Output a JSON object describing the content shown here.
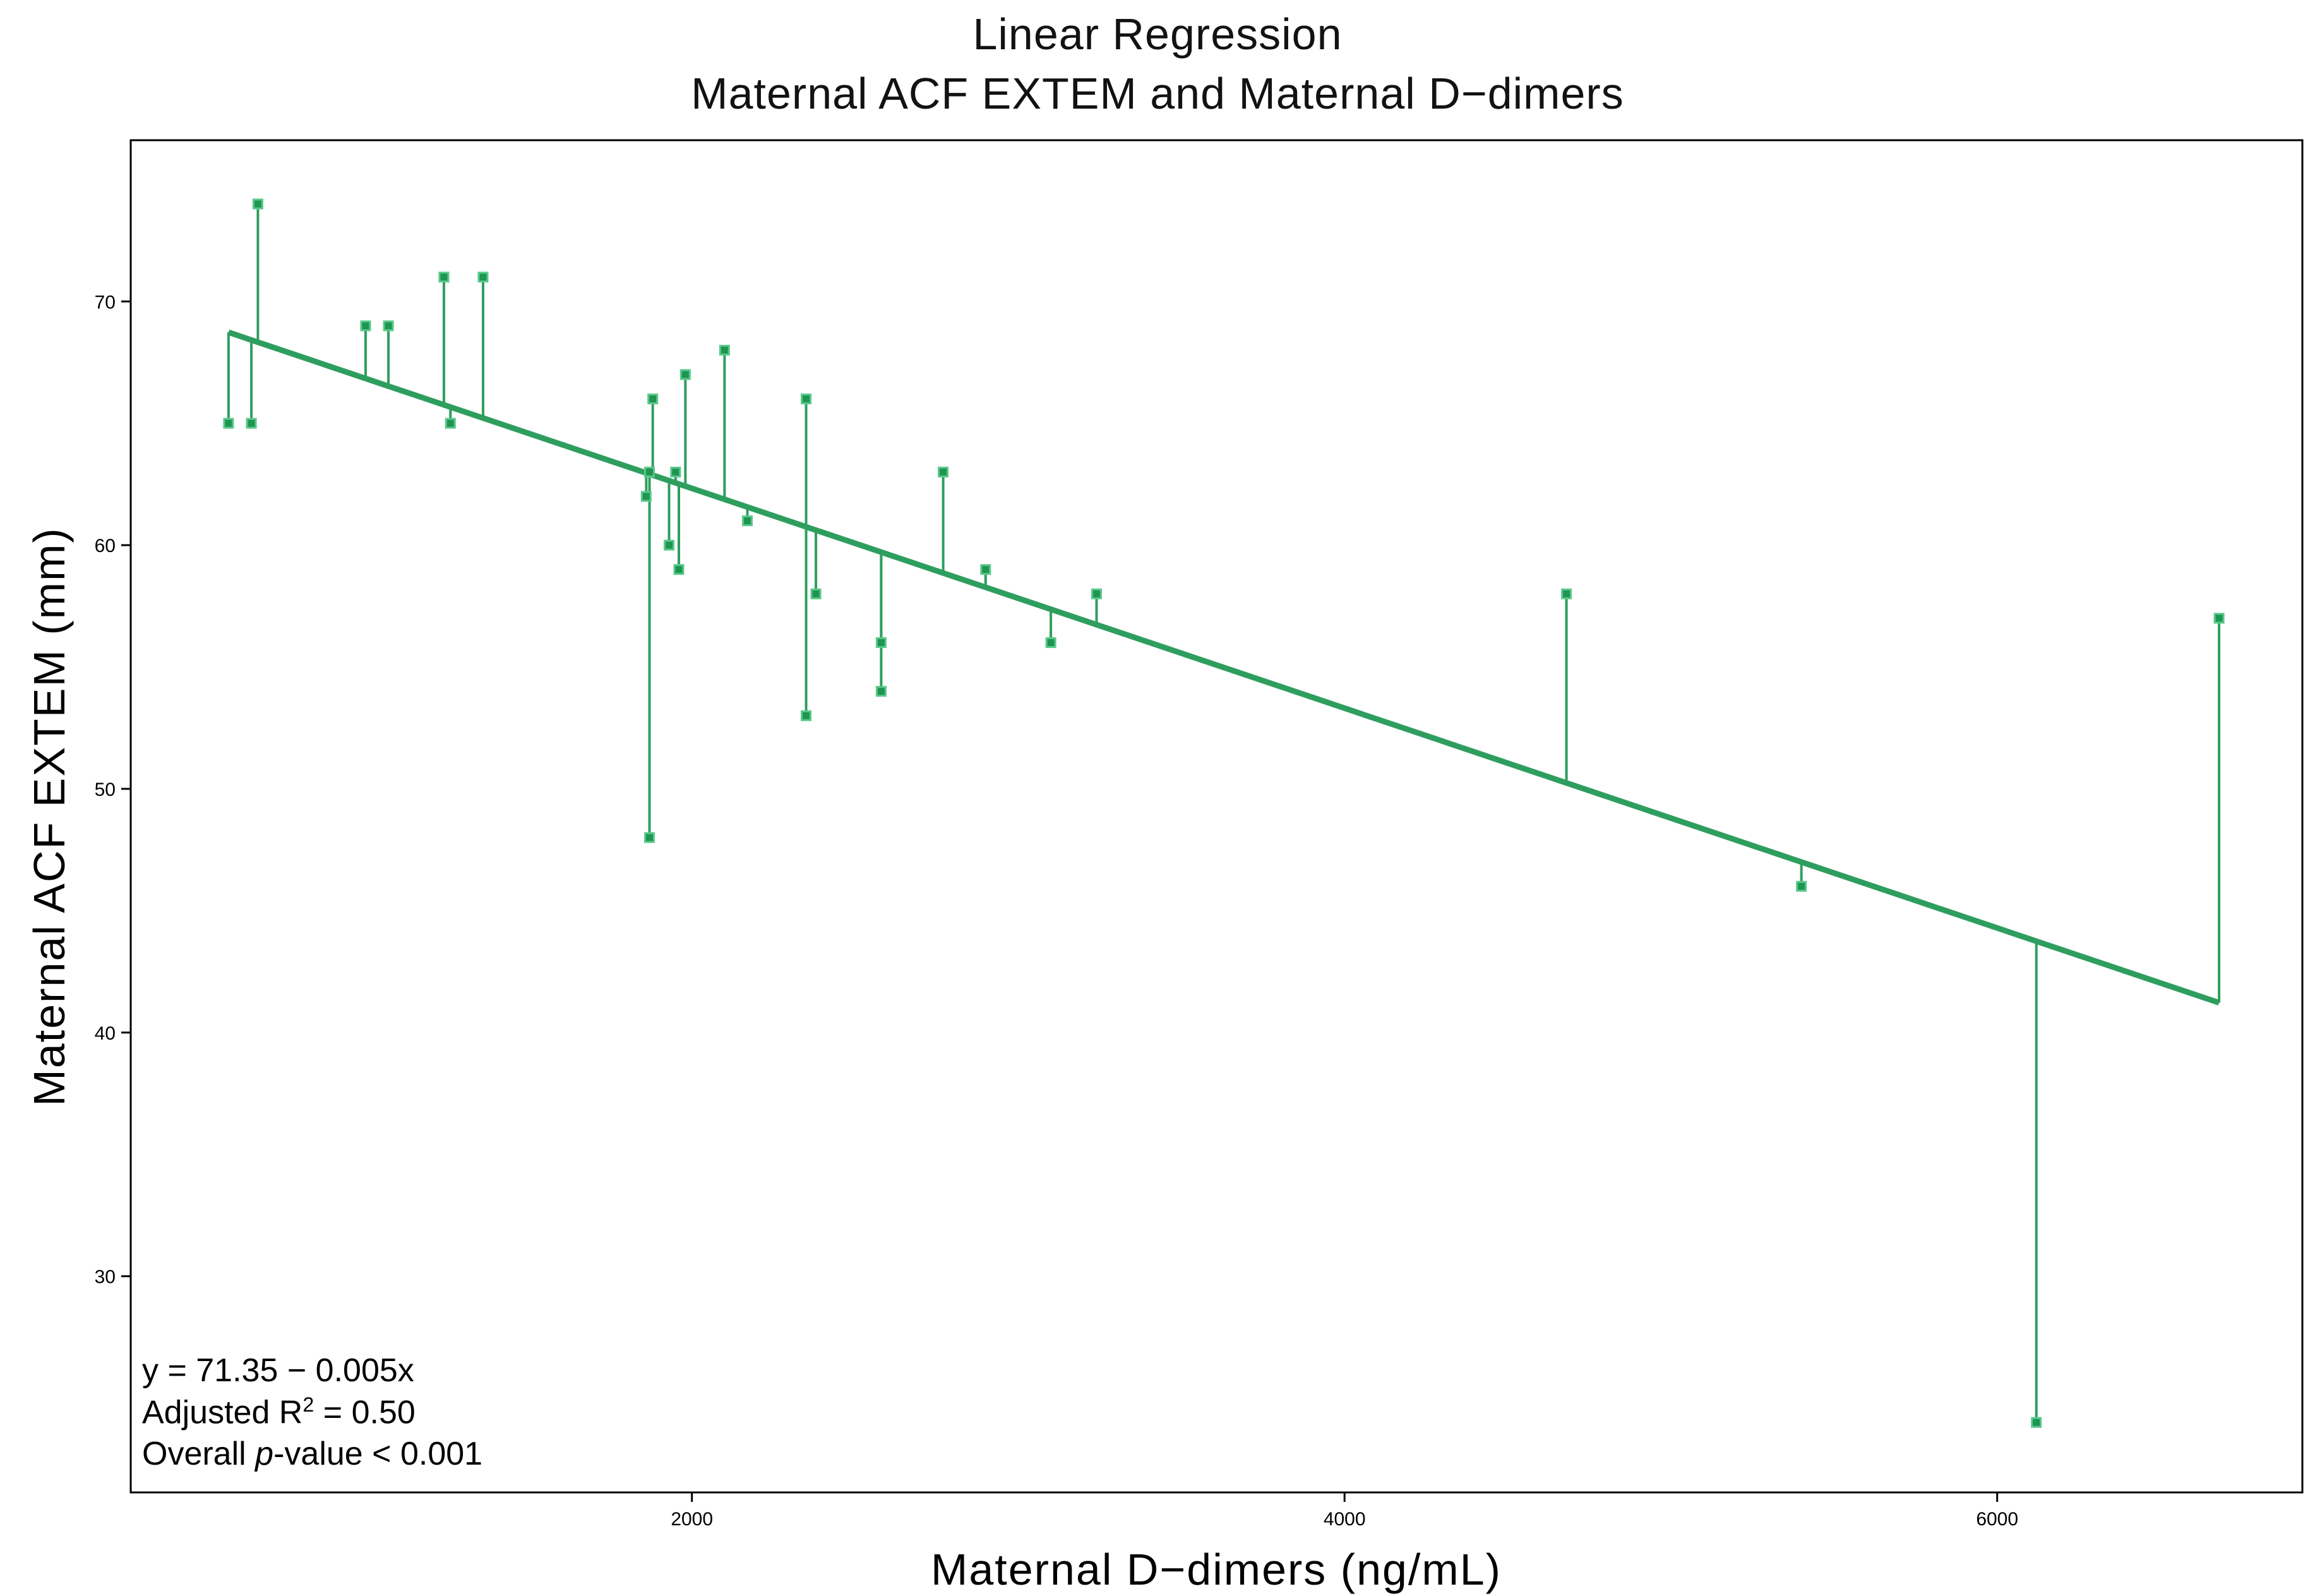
{
  "title": {
    "line1": "Linear Regression",
    "line2": "Maternal ACF EXTEM and Maternal D−dimers"
  },
  "annotation": {
    "equation": "y = 71.35 − 0.005x",
    "r2_prefix": "Adjusted R",
    "r2_sup": "2",
    "r2_suffix": " = 0.50",
    "p_prefix": "Overall ",
    "p_italic": "p",
    "p_suffix": "-value < 0.001"
  },
  "chart_data": {
    "type": "scatter",
    "title": "Linear Regression",
    "subtitle": "Maternal ACF EXTEM and Maternal D−dimers",
    "xlabel": "Maternal D−dimers (ng/mL)",
    "ylabel": "Maternal ACF EXTEM (mm)",
    "x_ticks": [
      2000,
      4000,
      6000
    ],
    "y_ticks": [
      30,
      40,
      50,
      60,
      70
    ],
    "xlim": [
      280,
      6940
    ],
    "ylim": [
      21,
      76.6
    ],
    "grid": false,
    "legend": "none",
    "points": [
      [
        580,
        65
      ],
      [
        650,
        65
      ],
      [
        670,
        74
      ],
      [
        1000,
        69
      ],
      [
        1070,
        69
      ],
      [
        1240,
        71
      ],
      [
        1260,
        65
      ],
      [
        1360,
        71
      ],
      [
        1860,
        62
      ],
      [
        1870,
        63
      ],
      [
        1870,
        48
      ],
      [
        1880,
        66
      ],
      [
        1930,
        60
      ],
      [
        1950,
        63
      ],
      [
        1960,
        59
      ],
      [
        1980,
        67
      ],
      [
        2100,
        68
      ],
      [
        2170,
        61
      ],
      [
        2350,
        66
      ],
      [
        2350,
        53
      ],
      [
        2380,
        58
      ],
      [
        2580,
        56
      ],
      [
        2580,
        54
      ],
      [
        2770,
        63
      ],
      [
        2900,
        59
      ],
      [
        3100,
        56
      ],
      [
        3240,
        58
      ],
      [
        4680,
        58
      ],
      [
        5400,
        46
      ],
      [
        6120,
        24
      ],
      [
        6680,
        57
      ]
    ],
    "fit_line": {
      "x_start": 580,
      "x_end": 6680,
      "intercept": 71.35,
      "slope": -0.00451,
      "equation_label": "y = 71.35 − 0.005x",
      "adjusted_r2": 0.5,
      "p_value": "< 0.001",
      "residual_lines": true
    },
    "colors": {
      "accent": "#2e9e5e",
      "marker_fill": "#1e9650",
      "marker_stroke": "#5ac88c",
      "axis": "#000000"
    }
  }
}
